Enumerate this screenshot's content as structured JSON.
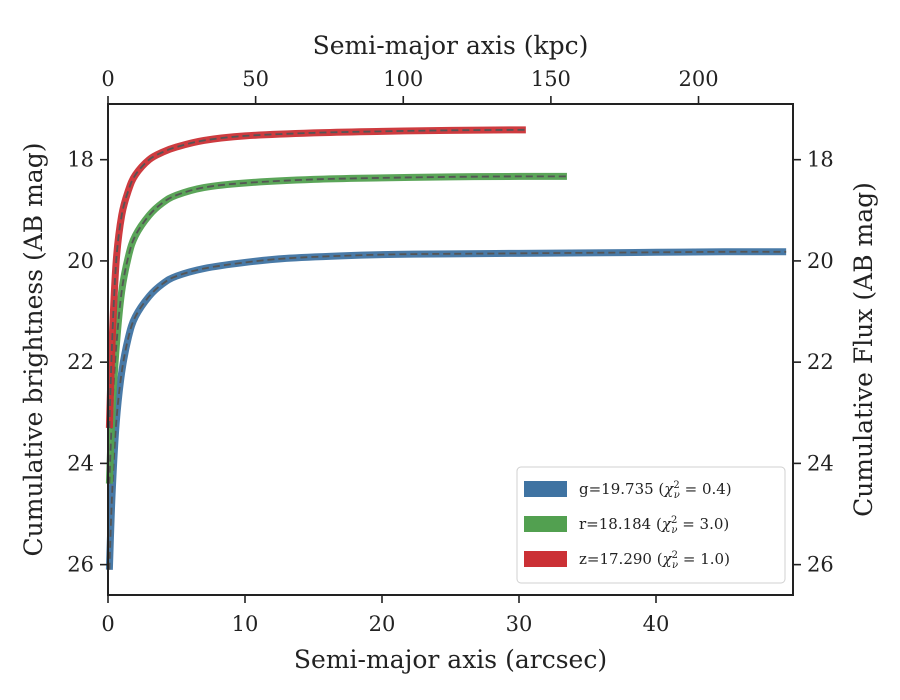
{
  "chart_data": {
    "type": "line",
    "xlabel": "Semi-major axis (arcsec)",
    "x2label": "Semi-major axis (kpc)",
    "ylabel": "Cumulative brightness (AB mag)",
    "y2label": "Cumulative Flux (AB mag)",
    "xlim": [
      0,
      50
    ],
    "x2lim": [
      0,
      232
    ],
    "ylim": [
      26.6,
      16.9
    ],
    "y_inverted": true,
    "xticks": [
      "0",
      "10",
      "20",
      "30",
      "40"
    ],
    "x2ticks": [
      "0",
      "50",
      "100",
      "150",
      "200"
    ],
    "yticks": [
      "18",
      "20",
      "22",
      "24",
      "26"
    ],
    "y2ticks": [
      "18",
      "20",
      "22",
      "24",
      "26"
    ],
    "grid": false,
    "legend_position": "lower-right",
    "series": [
      {
        "name": "g=19.735",
        "chi2": "0.4",
        "color": "#3f73a2",
        "x": [
          0.1,
          0.3,
          0.6,
          1.0,
          1.5,
          2.0,
          3.0,
          4.0,
          5.0,
          7.0,
          10.0,
          13.0,
          17.0,
          21.0,
          25.0,
          30.0,
          35.0,
          40.0,
          45.0,
          49.5
        ],
        "values": [
          26.1,
          24.6,
          23.2,
          22.2,
          21.5,
          21.1,
          20.7,
          20.45,
          20.3,
          20.15,
          20.03,
          19.95,
          19.9,
          19.87,
          19.86,
          19.85,
          19.84,
          19.83,
          19.82,
          19.82
        ]
      },
      {
        "name": "r=18.184",
        "chi2": "3.0",
        "color": "#52a050",
        "x": [
          0.1,
          0.3,
          0.6,
          1.0,
          1.5,
          2.0,
          3.0,
          4.0,
          5.0,
          7.0,
          10.0,
          15.0,
          20.0,
          25.0,
          30.0,
          33.5
        ],
        "values": [
          24.4,
          23.0,
          21.7,
          20.6,
          19.9,
          19.5,
          19.1,
          18.85,
          18.7,
          18.55,
          18.46,
          18.39,
          18.36,
          18.34,
          18.33,
          18.33
        ]
      },
      {
        "name": "z=17.290",
        "chi2": "1.0",
        "color": "#cb3035",
        "x": [
          0.1,
          0.3,
          0.6,
          1.0,
          1.5,
          2.0,
          3.0,
          4.0,
          5.0,
          7.0,
          10.0,
          15.0,
          20.0,
          25.0,
          30.5
        ],
        "values": [
          23.3,
          21.6,
          20.0,
          19.1,
          18.6,
          18.3,
          18.0,
          17.85,
          17.75,
          17.62,
          17.53,
          17.47,
          17.44,
          17.42,
          17.41
        ]
      }
    ],
    "model_line_color": "#555555"
  }
}
